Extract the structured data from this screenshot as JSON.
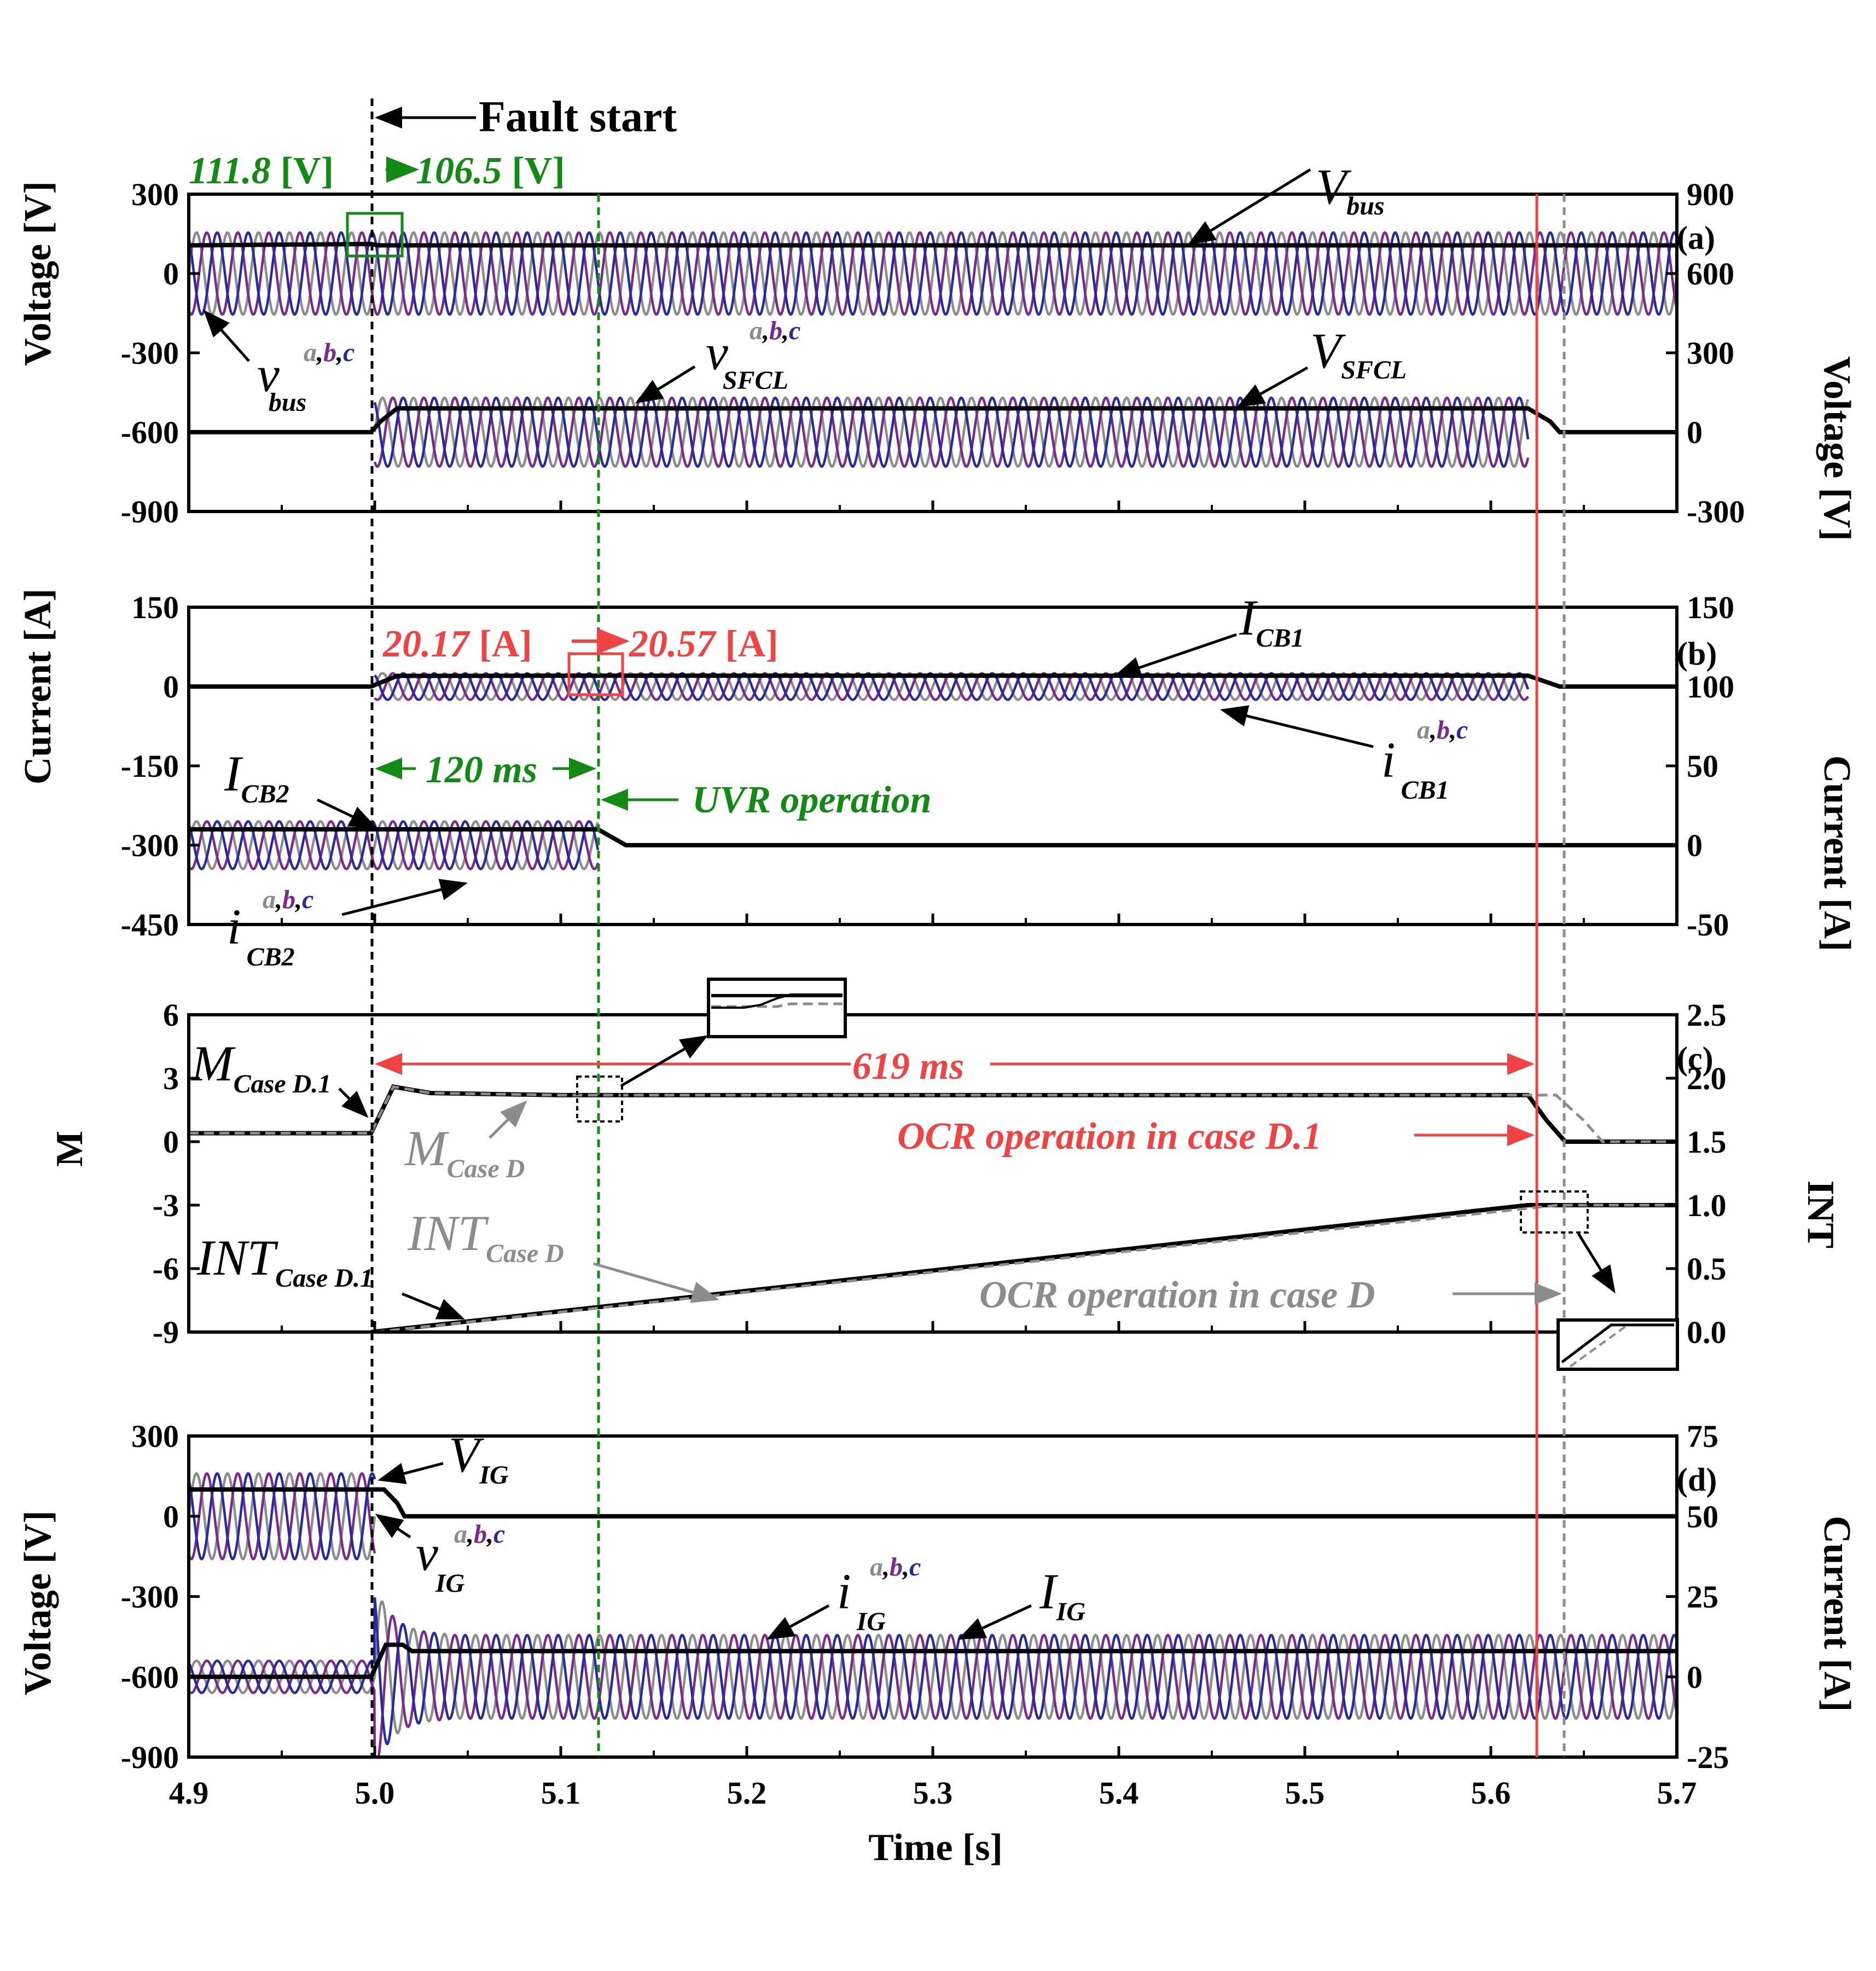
{
  "chart_data": [
    {
      "type": "line",
      "panel": "(a)",
      "xlabel": "Time [s]",
      "xlim": [
        4.9,
        5.7
      ],
      "x_ticks": [
        "4.9",
        "5.0",
        "5.1",
        "5.2",
        "5.3",
        "5.4",
        "5.5",
        "5.6",
        "5.7"
      ],
      "ylabel_left": "Voltage [V]",
      "ylim_left": [
        -900,
        300
      ],
      "y_ticks_left": [
        "300",
        "0",
        "-300",
        "-600",
        "-900"
      ],
      "ylabel_right": "Voltage [V]",
      "ylim_right": [
        -300,
        900
      ],
      "y_ticks_right": [
        "900",
        "600",
        "300",
        "0",
        "-300"
      ],
      "series": [
        {
          "name": "V_bus",
          "axis": "left",
          "points": [
            [
              4.9,
              106.5
            ],
            [
              4.998,
              111.8
            ],
            [
              5.002,
              106.5
            ],
            [
              5.7,
              106.5
            ]
          ]
        },
        {
          "name": "v_bus^{a,b,c}",
          "axis": "left",
          "waveform": "three-phase sine",
          "amplitude": 155,
          "offset": 0,
          "x_range": [
            4.9,
            5.7
          ]
        },
        {
          "name": "V_SFCL",
          "axis": "left",
          "points": [
            [
              4.9,
              -600
            ],
            [
              4.998,
              -600
            ],
            [
              5.003,
              -560
            ],
            [
              5.012,
              -510
            ],
            [
              5.62,
              -510
            ],
            [
              5.632,
              -560
            ],
            [
              5.637,
              -600
            ],
            [
              5.7,
              -600
            ]
          ]
        },
        {
          "name": "v_SFCL^{a,b,c}",
          "axis": "left",
          "waveform": "three-phase sine",
          "amplitude": 130,
          "offset": -600,
          "x_range": [
            5.0,
            5.62
          ]
        }
      ],
      "annotations": [
        "Fault start",
        "111.8 [V]",
        "106.5 [V]"
      ]
    },
    {
      "type": "line",
      "panel": "(b)",
      "xlim": [
        4.9,
        5.7
      ],
      "ylabel_left": "Current [A]",
      "ylim_left": [
        -450,
        150
      ],
      "y_ticks_left": [
        "150",
        "0",
        "-150",
        "-300",
        "-450"
      ],
      "ylabel_right": "Current [A]",
      "ylim_right": [
        -50,
        150
      ],
      "y_ticks_right": [
        "150",
        "100",
        "50",
        "0",
        "-50"
      ],
      "series": [
        {
          "name": "I_CB1",
          "axis": "left",
          "points": [
            [
              4.9,
              0
            ],
            [
              4.998,
              0
            ],
            [
              5.012,
              20.17
            ],
            [
              5.12,
              20.57
            ],
            [
              5.62,
              20.57
            ],
            [
              5.637,
              0
            ],
            [
              5.7,
              0
            ]
          ]
        },
        {
          "name": "i_CB1^{a,b,c}",
          "axis": "left",
          "waveform": "three-phase sine",
          "amplitude": 25,
          "offset": 0,
          "x_range": [
            5.0,
            5.62
          ]
        },
        {
          "name": "I_CB2",
          "axis": "left",
          "points": [
            [
              4.9,
              -270
            ],
            [
              5.12,
              -270
            ],
            [
              5.135,
              -300
            ],
            [
              5.7,
              -300
            ]
          ]
        },
        {
          "name": "i_CB2^{a,b,c}",
          "axis": "left",
          "waveform": "three-phase sine",
          "amplitude": 45,
          "offset": -300,
          "x_range": [
            4.9,
            5.12
          ]
        }
      ],
      "annotations": [
        "20.17 [A]",
        "20.57 [A]",
        "120 ms",
        "UVR operation"
      ]
    },
    {
      "type": "line",
      "panel": "(c)",
      "xlim": [
        4.9,
        5.7
      ],
      "ylabel_left": "M",
      "ylim_left": [
        -9,
        6
      ],
      "y_ticks_left": [
        "6",
        "3",
        "0",
        "-3",
        "-6",
        "-9"
      ],
      "ylabel_right": "INT",
      "ylim_right": [
        0.0,
        2.5
      ],
      "y_ticks_right": [
        "2.5",
        "2.0",
        "1.5",
        "1.0",
        "0.5",
        "0.0"
      ],
      "series": [
        {
          "name": "M_Case D.1",
          "axis": "left",
          "points": [
            [
              4.9,
              0.4
            ],
            [
              4.998,
              0.4
            ],
            [
              5.01,
              2.6
            ],
            [
              5.03,
              2.3
            ],
            [
              5.1,
              2.2
            ],
            [
              5.62,
              2.2
            ],
            [
              5.63,
              1.0
            ],
            [
              5.64,
              0
            ],
            [
              5.7,
              0
            ]
          ]
        },
        {
          "name": "M_Case D",
          "axis": "left",
          "points": [
            [
              4.9,
              0.4
            ],
            [
              4.998,
              0.4
            ],
            [
              5.01,
              2.6
            ],
            [
              5.03,
              2.3
            ],
            [
              5.1,
              2.2
            ],
            [
              5.635,
              2.2
            ],
            [
              5.65,
              1.0
            ],
            [
              5.66,
              0
            ],
            [
              5.7,
              0
            ]
          ]
        },
        {
          "name": "INT_Case D.1",
          "axis": "right",
          "points": [
            [
              4.998,
              0.0
            ],
            [
              5.62,
              1.0
            ],
            [
              5.7,
              1.0
            ]
          ]
        },
        {
          "name": "INT_Case D",
          "axis": "right",
          "points": [
            [
              5.0,
              0.0
            ],
            [
              5.636,
              1.0
            ],
            [
              5.7,
              1.0
            ]
          ]
        }
      ],
      "annotations": [
        "619 ms",
        "OCR operation in case D.1",
        "OCR operation in case D"
      ]
    },
    {
      "type": "line",
      "panel": "(d)",
      "xlim": [
        4.9,
        5.7
      ],
      "ylabel_left": "Voltage [V]",
      "ylim_left": [
        -900,
        300
      ],
      "y_ticks_left": [
        "300",
        "0",
        "-300",
        "-600",
        "-900"
      ],
      "ylabel_right": "Current [A]",
      "ylim_right": [
        -25,
        75
      ],
      "y_ticks_right": [
        "75",
        "50",
        "25",
        "0",
        "-25"
      ],
      "series": [
        {
          "name": "V_IG",
          "axis": "left",
          "points": [
            [
              4.9,
              100
            ],
            [
              5.005,
              100
            ],
            [
              5.012,
              50
            ],
            [
              5.016,
              0
            ],
            [
              5.7,
              0
            ]
          ]
        },
        {
          "name": "v_IG^{a,b,c}",
          "axis": "left",
          "waveform": "three-phase sine",
          "amplitude": 160,
          "offset": 0,
          "x_range": [
            4.9,
            5.0
          ]
        },
        {
          "name": "I_IG",
          "axis": "right",
          "points": [
            [
              4.9,
              0
            ],
            [
              4.998,
              0
            ],
            [
              5.006,
              10
            ],
            [
              5.015,
              10
            ],
            [
              5.02,
              8
            ],
            [
              5.7,
              8
            ]
          ]
        },
        {
          "name": "i_IG^{a,b,c}",
          "axis": "right",
          "waveform": "three-phase sine",
          "amplitude_pre": 5,
          "amplitude_post": 13,
          "offset_pre": 0,
          "offset_post": 0,
          "x_range": [
            4.9,
            5.7
          ]
        }
      ]
    }
  ],
  "labels": {
    "panel_a": "(a)",
    "panel_b": "(b)",
    "panel_c": "(c)",
    "panel_d": "(d)",
    "fault_start": "Fault start",
    "v_before": "111.8",
    "v_after": "106.5",
    "v_unit": "[V]",
    "i_before": "20.17",
    "i_after": "20.57",
    "i_unit": "[A]",
    "dt_uvr": "120 ms",
    "uvr": "UVR operation",
    "dt_ocr": "619 ms",
    "ocr_d1": "OCR operation in case D.1",
    "ocr_d": "OCR operation in case D",
    "time_axis": "Time [s]",
    "y_a_left": "Voltage [V]",
    "y_a_right": "Voltage [V]",
    "y_b_left": "Current [A]",
    "y_b_right": "Current [A]",
    "y_c_left": "M",
    "y_c_right": "INT",
    "y_d_left": "Voltage [V]",
    "y_d_right": "Current [A]",
    "V": "V",
    "v": "v",
    "I": "I",
    "i": "i",
    "M": "M",
    "INT": "INT",
    "sub_bus": "bus",
    "sub_sfcl": "SFCL",
    "sub_cb1": "CB1",
    "sub_cb2": "CB2",
    "sub_cased1": "Case D.1",
    "sub_cased": "Case D",
    "sub_ig": "IG",
    "ph_a": "a",
    "ph_b": "b",
    "ph_c": "c",
    "comma": ","
  },
  "colors": {
    "phase_a": "#8c8c8c",
    "phase_b": "#7a2a8c",
    "phase_c": "#2a2aa0",
    "main": "#000000",
    "case_d": "#8c8c8c",
    "green": "#138a13",
    "red": "#ee4444"
  }
}
